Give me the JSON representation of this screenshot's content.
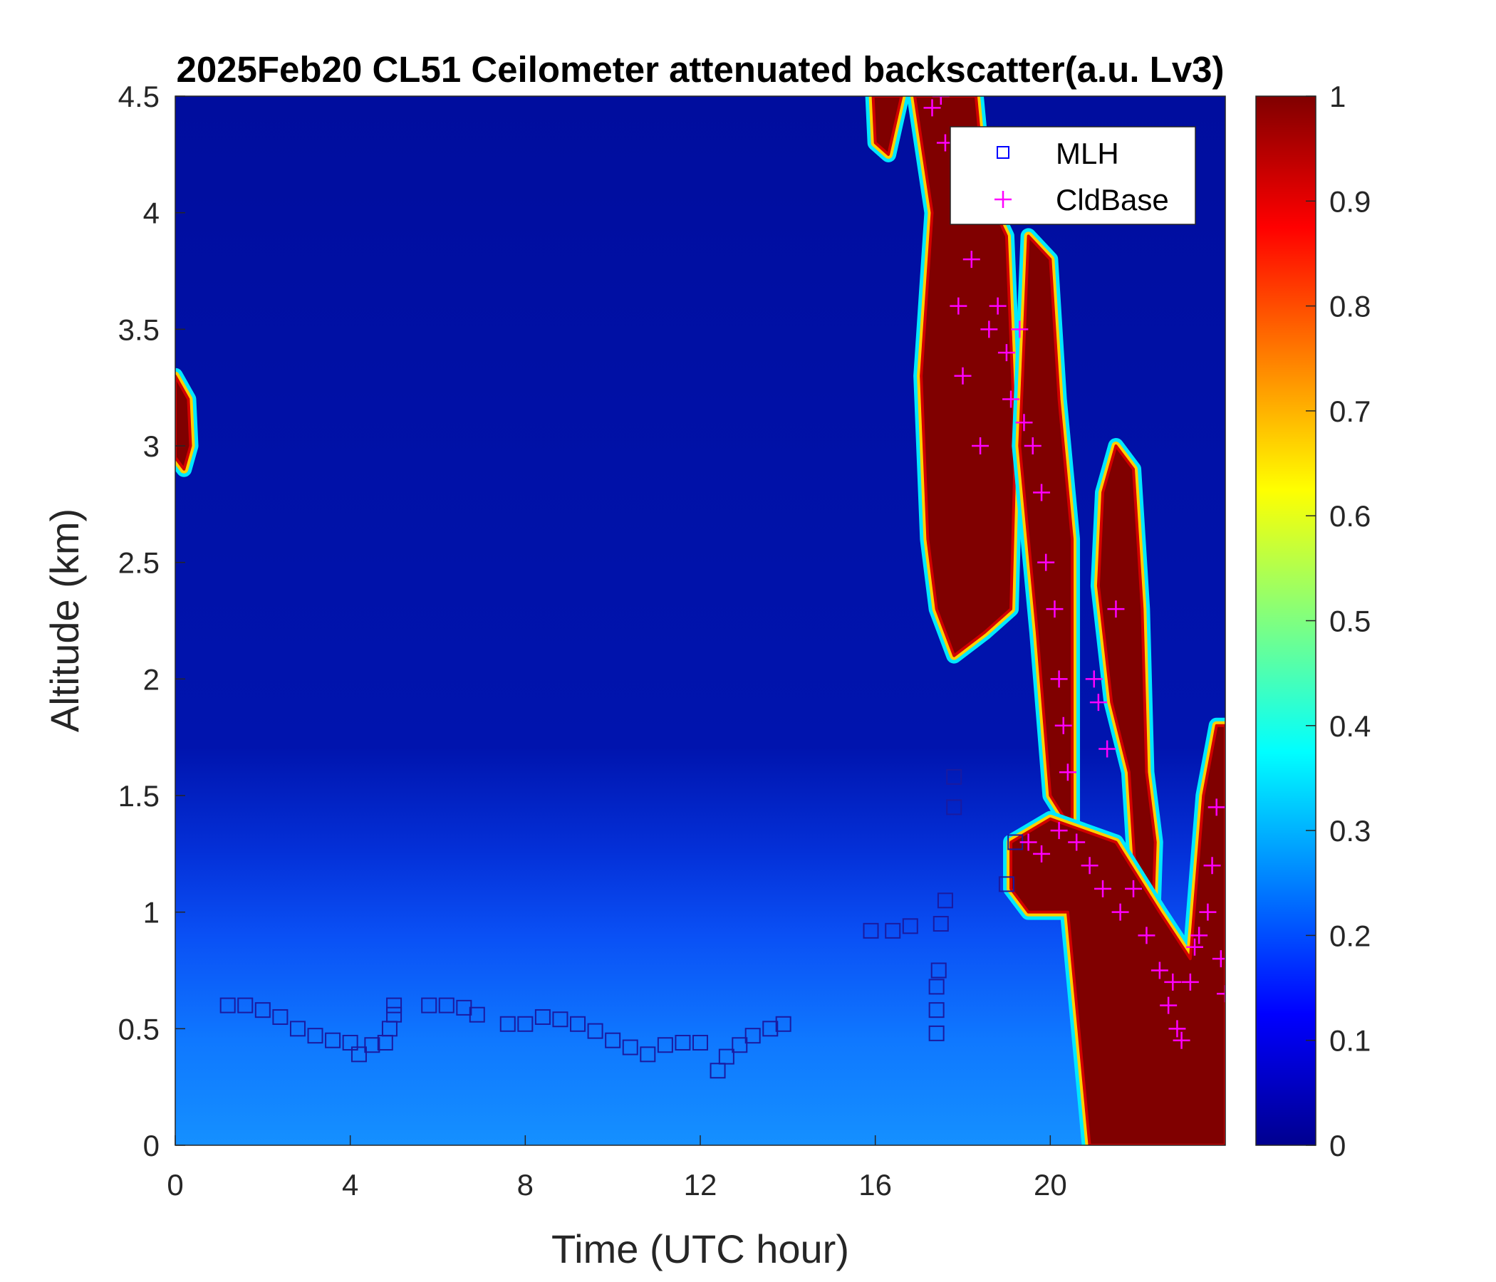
{
  "chart_data": {
    "type": "heatmap",
    "title": "2025Feb20 CL51 Ceilometer attenuated backscatter(a.u. Lv3)",
    "xlabel": "Time (UTC hour)",
    "ylabel": "Altitude (km)",
    "xlim": [
      0,
      24
    ],
    "ylim": [
      0,
      4.5
    ],
    "xticks": [
      "0",
      "4",
      "8",
      "12",
      "16",
      "20"
    ],
    "xtick_values": [
      0,
      4,
      8,
      12,
      16,
      20
    ],
    "yticks": [
      "0",
      "0.5",
      "1",
      "1.5",
      "2",
      "2.5",
      "3",
      "3.5",
      "4",
      "4.5"
    ],
    "ytick_values": [
      0,
      0.5,
      1,
      1.5,
      2,
      2.5,
      3,
      3.5,
      4,
      4.5
    ],
    "colorbar": {
      "range": [
        0,
        1
      ],
      "colormap": "jet",
      "ticks": [
        "0",
        "0.1",
        "0.2",
        "0.3",
        "0.4",
        "0.5",
        "0.6",
        "0.7",
        "0.8",
        "0.9",
        "1"
      ],
      "tick_values": [
        0,
        0.1,
        0.2,
        0.3,
        0.4,
        0.5,
        0.6,
        0.7,
        0.8,
        0.9,
        1
      ]
    },
    "legend": {
      "placement": "top-right",
      "entries": [
        {
          "label": "MLH",
          "marker": "square",
          "color": "#0000ff"
        },
        {
          "label": "CldBase",
          "marker": "plus",
          "color": "#ff00ff"
        }
      ]
    },
    "series": [
      {
        "name": "MLH",
        "points": [
          [
            1.2,
            0.6
          ],
          [
            1.6,
            0.6
          ],
          [
            2.0,
            0.58
          ],
          [
            2.4,
            0.55
          ],
          [
            2.8,
            0.5
          ],
          [
            3.2,
            0.47
          ],
          [
            3.6,
            0.45
          ],
          [
            4.0,
            0.44
          ],
          [
            4.2,
            0.39
          ],
          [
            4.5,
            0.43
          ],
          [
            4.8,
            0.44
          ],
          [
            4.9,
            0.5
          ],
          [
            5.0,
            0.56
          ],
          [
            5.0,
            0.6
          ],
          [
            5.8,
            0.6
          ],
          [
            6.2,
            0.6
          ],
          [
            6.6,
            0.59
          ],
          [
            6.9,
            0.56
          ],
          [
            7.6,
            0.52
          ],
          [
            8.0,
            0.52
          ],
          [
            8.4,
            0.55
          ],
          [
            8.8,
            0.54
          ],
          [
            9.2,
            0.52
          ],
          [
            9.6,
            0.49
          ],
          [
            10.0,
            0.45
          ],
          [
            10.4,
            0.42
          ],
          [
            10.8,
            0.39
          ],
          [
            11.2,
            0.43
          ],
          [
            11.6,
            0.44
          ],
          [
            12.0,
            0.44
          ],
          [
            12.4,
            0.32
          ],
          [
            12.6,
            0.38
          ],
          [
            12.9,
            0.43
          ],
          [
            13.2,
            0.47
          ],
          [
            13.6,
            0.5
          ],
          [
            13.9,
            0.52
          ],
          [
            15.9,
            0.92
          ],
          [
            16.4,
            0.92
          ],
          [
            16.8,
            0.94
          ],
          [
            17.4,
            0.48
          ],
          [
            17.4,
            0.58
          ],
          [
            17.4,
            0.68
          ],
          [
            17.45,
            0.75
          ],
          [
            17.5,
            0.95
          ],
          [
            17.6,
            1.05
          ],
          [
            17.8,
            1.45
          ],
          [
            17.8,
            1.58
          ],
          [
            19.0,
            1.12
          ],
          [
            19.2,
            1.3
          ]
        ]
      },
      {
        "name": "CldBase",
        "points": [
          [
            17.3,
            4.45
          ],
          [
            17.5,
            4.5
          ],
          [
            17.6,
            4.3
          ],
          [
            17.9,
            3.6
          ],
          [
            18.0,
            3.3
          ],
          [
            18.2,
            3.8
          ],
          [
            18.4,
            3.0
          ],
          [
            18.6,
            3.5
          ],
          [
            18.8,
            3.6
          ],
          [
            19.0,
            3.4
          ],
          [
            19.1,
            3.2
          ],
          [
            19.3,
            3.5
          ],
          [
            19.4,
            3.1
          ],
          [
            19.6,
            3.0
          ],
          [
            19.8,
            2.8
          ],
          [
            19.9,
            2.5
          ],
          [
            20.1,
            2.3
          ],
          [
            20.2,
            2.0
          ],
          [
            20.3,
            1.8
          ],
          [
            20.4,
            1.6
          ],
          [
            20.2,
            1.35
          ],
          [
            19.5,
            1.3
          ],
          [
            19.8,
            1.25
          ],
          [
            20.6,
            1.3
          ],
          [
            20.9,
            1.2
          ],
          [
            21.0,
            2.0
          ],
          [
            21.1,
            1.9
          ],
          [
            21.3,
            1.7
          ],
          [
            21.5,
            2.3
          ],
          [
            21.2,
            1.1
          ],
          [
            21.6,
            1.0
          ],
          [
            21.9,
            1.1
          ],
          [
            22.2,
            0.9
          ],
          [
            22.5,
            0.75
          ],
          [
            22.7,
            0.6
          ],
          [
            22.9,
            0.5
          ],
          [
            23.0,
            0.45
          ],
          [
            23.2,
            0.7
          ],
          [
            23.4,
            0.9
          ],
          [
            23.6,
            1.0
          ],
          [
            23.7,
            1.2
          ],
          [
            23.8,
            1.45
          ],
          [
            23.9,
            0.8
          ],
          [
            24.0,
            0.65
          ],
          [
            23.3,
            0.85
          ],
          [
            22.8,
            0.7
          ]
        ]
      }
    ]
  }
}
